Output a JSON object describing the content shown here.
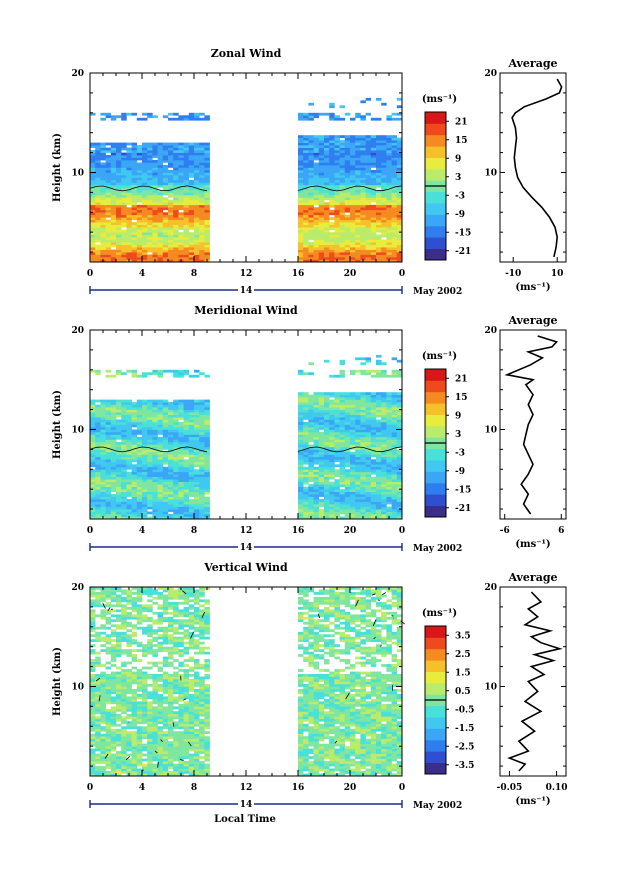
{
  "figure": {
    "x_axis_label": "Local Time",
    "date_label": "May 2002",
    "day_label": "14"
  },
  "colormap": [
    "#3b2e8a",
    "#2f4fd0",
    "#2f7ef0",
    "#3aa6f5",
    "#40c8f0",
    "#48e0d8",
    "#7fe6a0",
    "#b8ec6a",
    "#e8ec3c",
    "#f5c02a",
    "#f58a20",
    "#ee4a1c",
    "#d81818"
  ],
  "chart_data": [
    {
      "type": "heatmap",
      "title": "Zonal Wind",
      "xlabel": "",
      "ylabel": "Height (km)",
      "unit_label": "(ms⁻¹)",
      "x_ticks": [
        "0",
        "4",
        "8",
        "12",
        "16",
        "20",
        "0"
      ],
      "xlim": [
        0,
        24
      ],
      "y_ticks": [
        "10",
        "20"
      ],
      "ylim": [
        1,
        20
      ],
      "data_gaps": [
        [
          9,
          16
        ]
      ],
      "colorbar_ticks": [
        "21",
        "15",
        "9",
        "3",
        "-3",
        "-9",
        "-15",
        "-21"
      ],
      "colorbar_range": [
        -24,
        24
      ],
      "profile": {
        "title": "Average",
        "x_ticks": [
          "-10",
          "10"
        ],
        "xlim": [
          -16,
          14
        ],
        "y_ticks": [
          "10",
          "20"
        ],
        "unit_label": "(ms⁻¹)",
        "points": [
          [
            8.5,
            1.5
          ],
          [
            9.5,
            2.5
          ],
          [
            10,
            3.5
          ],
          [
            9,
            4.5
          ],
          [
            6.5,
            5.5
          ],
          [
            3,
            6.5
          ],
          [
            -1.5,
            7.5
          ],
          [
            -5.5,
            8.5
          ],
          [
            -8,
            9.5
          ],
          [
            -9,
            10.5
          ],
          [
            -9.5,
            11.5
          ],
          [
            -9,
            12.5
          ],
          [
            -8.5,
            13.5
          ],
          [
            -9,
            14.5
          ],
          [
            -10.5,
            15.5
          ],
          [
            -9,
            16
          ],
          [
            -5,
            16.6
          ],
          [
            5,
            17.4
          ],
          [
            11,
            18
          ],
          [
            12,
            18.6
          ],
          [
            10,
            19.4
          ]
        ]
      }
    },
    {
      "type": "heatmap",
      "title": "Meridional Wind",
      "xlabel": "",
      "ylabel": "Height (km)",
      "unit_label": "(ms⁻¹)",
      "x_ticks": [
        "0",
        "4",
        "8",
        "12",
        "16",
        "20",
        "0"
      ],
      "xlim": [
        0,
        24
      ],
      "y_ticks": [
        "10",
        "20"
      ],
      "ylim": [
        1,
        20
      ],
      "data_gaps": [
        [
          9,
          16
        ]
      ],
      "colorbar_ticks": [
        "21",
        "15",
        "9",
        "3",
        "-3",
        "-9",
        "-15",
        "-21"
      ],
      "colorbar_range": [
        -24,
        24
      ],
      "profile": {
        "title": "Average",
        "x_ticks": [
          "-6",
          "6"
        ],
        "xlim": [
          -7,
          7
        ],
        "y_ticks": [
          "10",
          "20"
        ],
        "unit_label": "(ms⁻¹)",
        "points": [
          [
            -0.5,
            1.5
          ],
          [
            -2,
            2.5
          ],
          [
            -1,
            3.5
          ],
          [
            -2.5,
            4.5
          ],
          [
            -1,
            5.5
          ],
          [
            0,
            6.5
          ],
          [
            -1,
            7.5
          ],
          [
            -2,
            8.5
          ],
          [
            -1.5,
            9.5
          ],
          [
            -1,
            10.5
          ],
          [
            0,
            11.5
          ],
          [
            -1,
            12.5
          ],
          [
            0,
            13.5
          ],
          [
            -1.5,
            14.5
          ],
          [
            0,
            15
          ],
          [
            -5.5,
            15.5
          ],
          [
            -0.5,
            16.5
          ],
          [
            2,
            17.2
          ],
          [
            -1,
            17.8
          ],
          [
            4,
            18.3
          ],
          [
            5,
            18.8
          ],
          [
            1,
            19.4
          ]
        ]
      }
    },
    {
      "type": "heatmap",
      "title": "Vertical Wind",
      "xlabel": "Local Time",
      "ylabel": "Height (km)",
      "unit_label": "(ms⁻¹)",
      "x_ticks": [
        "0",
        "4",
        "8",
        "12",
        "16",
        "20",
        "0"
      ],
      "xlim": [
        0,
        24
      ],
      "y_ticks": [
        "10",
        "20"
      ],
      "ylim": [
        1,
        20
      ],
      "data_gaps": [
        [
          9,
          16
        ]
      ],
      "colorbar_ticks": [
        "3.5",
        "2.5",
        "1.5",
        "0.5",
        "-0.5",
        "-1.5",
        "-2.5",
        "-3.5"
      ],
      "colorbar_range": [
        -4,
        4
      ],
      "profile": {
        "title": "Average",
        "x_ticks": [
          "-0.05",
          "0.10"
        ],
        "xlim": [
          -0.08,
          0.13
        ],
        "y_ticks": [
          "10",
          "20"
        ],
        "unit_label": "(ms⁻¹)",
        "points": [
          [
            -0.02,
            1.5
          ],
          [
            0,
            2.2
          ],
          [
            -0.05,
            2.8
          ],
          [
            0.01,
            3.5
          ],
          [
            -0.02,
            4.5
          ],
          [
            0.03,
            5.5
          ],
          [
            -0.01,
            6.5
          ],
          [
            0.05,
            7.5
          ],
          [
            0,
            8.5
          ],
          [
            0.04,
            9.5
          ],
          [
            0.01,
            10.5
          ],
          [
            0.06,
            11.2
          ],
          [
            0.02,
            12
          ],
          [
            0.09,
            12.6
          ],
          [
            0.03,
            13.2
          ],
          [
            0.11,
            13.8
          ],
          [
            0.05,
            14.4
          ],
          [
            0.02,
            15
          ],
          [
            0.08,
            15.6
          ],
          [
            0,
            16.2
          ],
          [
            0.04,
            17
          ],
          [
            0.01,
            17.8
          ],
          [
            0.05,
            18.5
          ],
          [
            0.02,
            19.5
          ]
        ]
      }
    }
  ]
}
